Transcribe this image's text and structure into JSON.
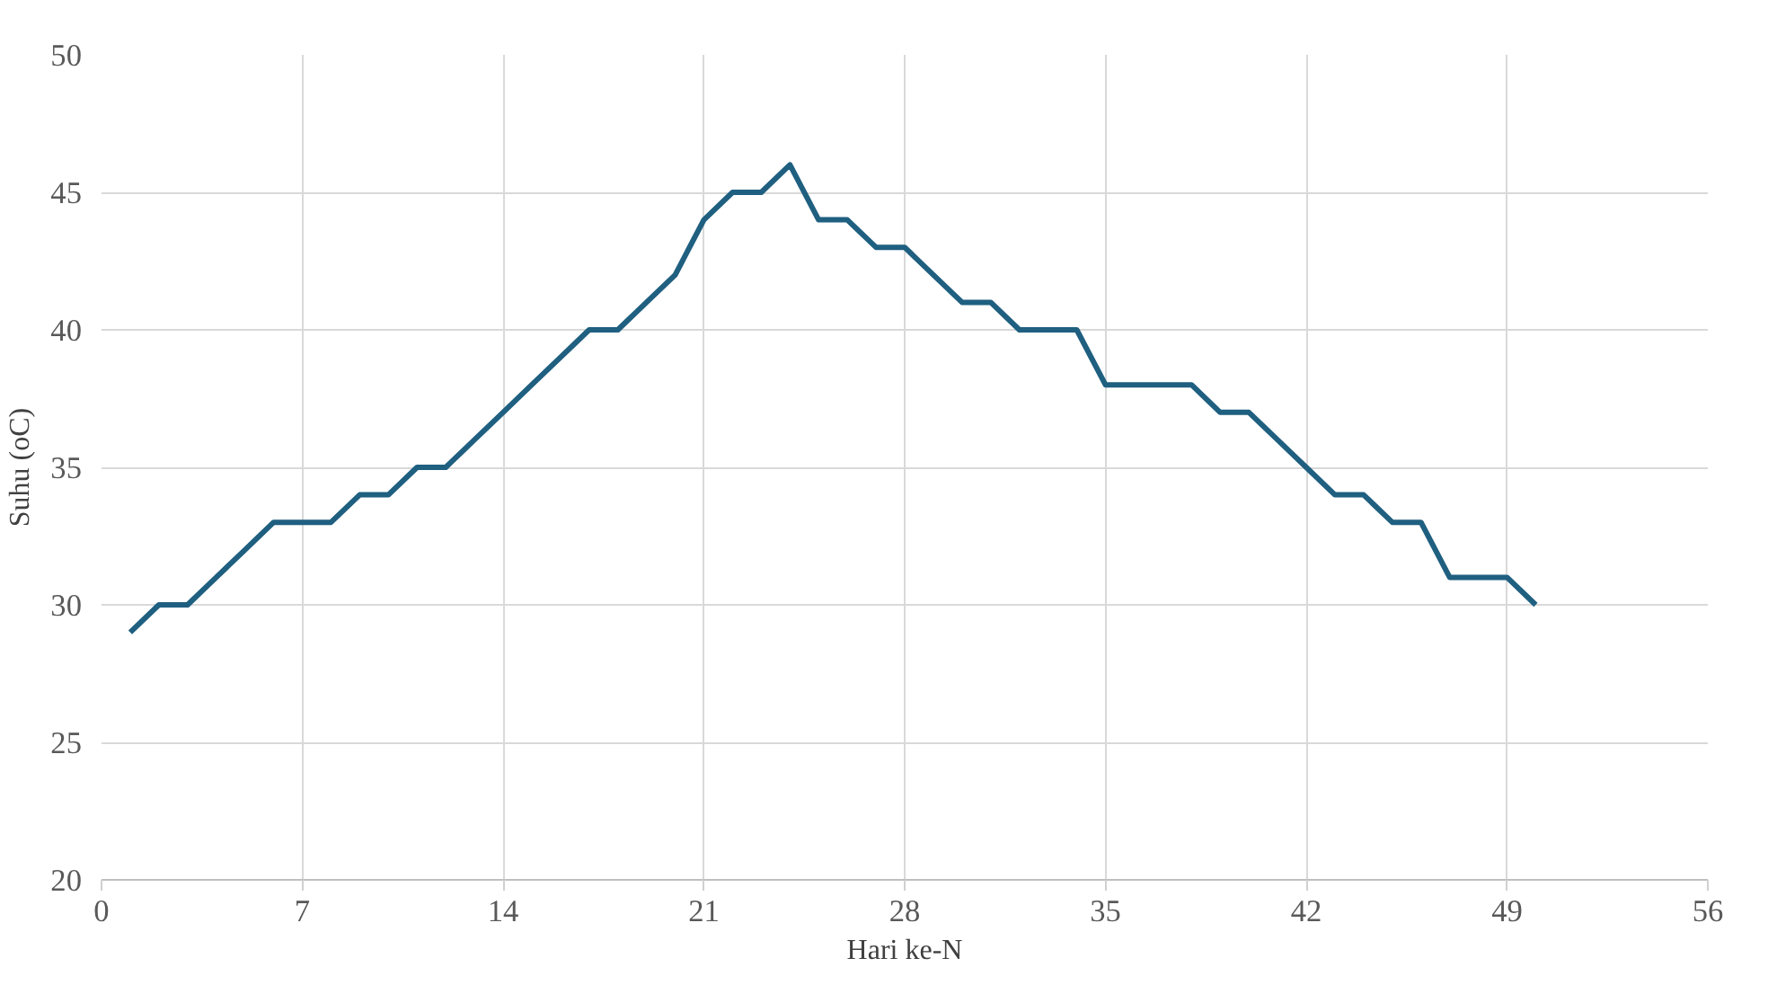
{
  "chart_data": {
    "type": "line",
    "xlabel": "Hari ke-N",
    "ylabel": "Suhu (oC)",
    "x": [
      1,
      2,
      3,
      4,
      5,
      6,
      7,
      8,
      9,
      10,
      11,
      12,
      13,
      14,
      15,
      16,
      17,
      18,
      19,
      20,
      21,
      22,
      23,
      24,
      25,
      26,
      27,
      28,
      29,
      30,
      31,
      32,
      33,
      34,
      35,
      36,
      37,
      38,
      39,
      40,
      41,
      42,
      43,
      44,
      45,
      46,
      47,
      48,
      49,
      50
    ],
    "series": [
      {
        "color": "#1f5f80",
        "values": [
          29,
          30,
          30,
          31,
          32,
          33,
          33,
          33,
          34,
          34,
          35,
          35,
          36,
          37,
          38,
          39,
          40,
          40,
          41,
          42,
          44,
          45,
          45,
          46,
          44,
          44,
          43,
          43,
          42,
          41,
          41,
          40,
          40,
          40,
          38,
          38,
          38,
          38,
          37,
          37,
          36,
          35,
          34,
          34,
          33,
          33,
          31,
          31,
          31,
          30
        ]
      }
    ],
    "xlim": [
      0,
      56
    ],
    "xticks": [
      0,
      7,
      14,
      21,
      28,
      35,
      42,
      49,
      56
    ],
    "ylim": [
      20,
      50
    ],
    "yticks": [
      20,
      25,
      30,
      35,
      40,
      45,
      50
    ],
    "grid": true,
    "marker": "none",
    "line_style": "solid"
  }
}
